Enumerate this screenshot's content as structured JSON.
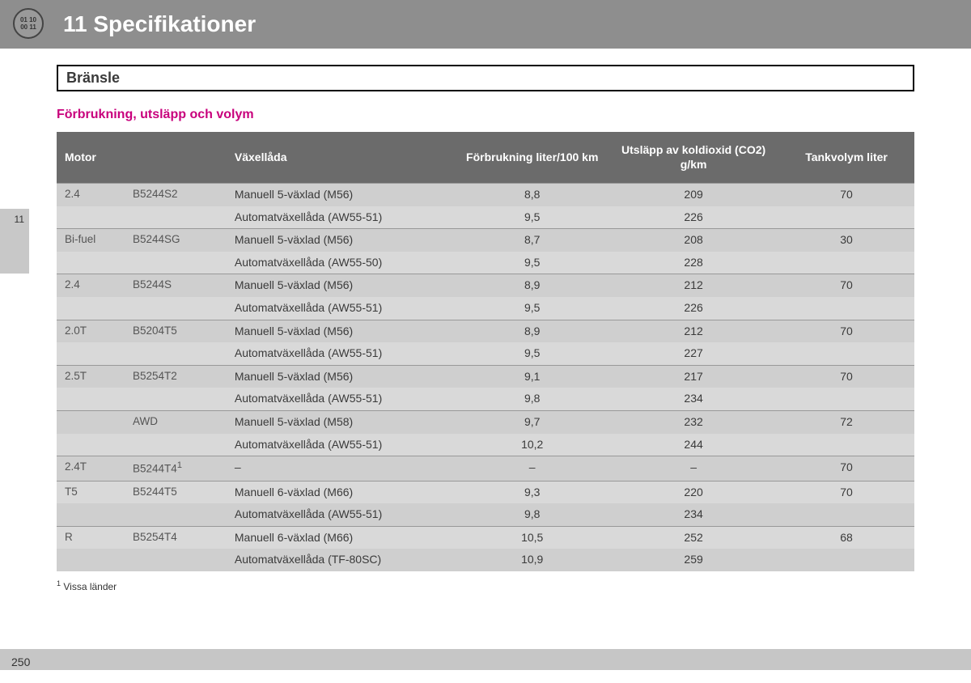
{
  "header": {
    "chapter_title": "11 Specifikationer",
    "icon_lines": [
      "01 10",
      "00 11"
    ]
  },
  "side_tab": "11",
  "section_title": "Bränsle",
  "subtitle": "Förbrukning, utsläpp och volym",
  "columns": {
    "motor": "Motor",
    "gearbox": "Växellåda",
    "consumption": "Förbrukning liter/100 km",
    "co2": "Utsläpp av koldioxid (CO2) g/km",
    "tank": "Tankvolym liter"
  },
  "rows": [
    {
      "shade": "A",
      "section": true,
      "motor": "2.4",
      "engine": "B5244S2",
      "gear": "Manuell 5-växlad (M56)",
      "cons": "8,8",
      "co2": "209",
      "tank": "70"
    },
    {
      "shade": "B",
      "motor": "",
      "engine": "",
      "gear": "Automatväxellåda (AW55-51)",
      "cons": "9,5",
      "co2": "226",
      "tank": ""
    },
    {
      "shade": "A",
      "section": true,
      "motor": "Bi-fuel",
      "engine": "B5244SG",
      "gear": "Manuell 5-växlad (M56)",
      "cons": "8,7",
      "co2": "208",
      "tank": "30"
    },
    {
      "shade": "B",
      "motor": "",
      "engine": "",
      "gear": "Automatväxellåda (AW55-50)",
      "cons": "9,5",
      "co2": "228",
      "tank": ""
    },
    {
      "shade": "A",
      "section": true,
      "motor": "2.4",
      "engine": "B5244S",
      "gear": "Manuell 5-växlad (M56)",
      "cons": "8,9",
      "co2": "212",
      "tank": "70"
    },
    {
      "shade": "B",
      "motor": "",
      "engine": "",
      "gear": "Automatväxellåda (AW55-51)",
      "cons": "9,5",
      "co2": "226",
      "tank": ""
    },
    {
      "shade": "A",
      "section": true,
      "motor": "2.0T",
      "engine": "B5204T5",
      "gear": "Manuell 5-växlad (M56)",
      "cons": "8,9",
      "co2": "212",
      "tank": "70"
    },
    {
      "shade": "B",
      "motor": "",
      "engine": "",
      "gear": "Automatväxellåda (AW55-51)",
      "cons": "9,5",
      "co2": "227",
      "tank": ""
    },
    {
      "shade": "A",
      "section": true,
      "motor": "2.5T",
      "engine": "B5254T2",
      "gear": "Manuell 5-växlad (M56)",
      "cons": "9,1",
      "co2": "217",
      "tank": "70"
    },
    {
      "shade": "B",
      "motor": "",
      "engine": "",
      "gear": "Automatväxellåda (AW55-51)",
      "cons": "9,8",
      "co2": "234",
      "tank": ""
    },
    {
      "shade": "A",
      "section": true,
      "motor": "",
      "engine": "AWD",
      "gear": "Manuell 5-växlad (M58)",
      "cons": "9,7",
      "co2": "232",
      "tank": "72"
    },
    {
      "shade": "B",
      "motor": "",
      "engine": "",
      "gear": "Automatväxellåda (AW55-51)",
      "cons": "10,2",
      "co2": "244",
      "tank": ""
    },
    {
      "shade": "A",
      "section": true,
      "motor": "2.4T",
      "engine": "B5244T4",
      "sup": "1",
      "gear": "–",
      "cons": "–",
      "co2": "–",
      "tank": "70"
    },
    {
      "shade": "B",
      "section": true,
      "motor": "T5",
      "engine": "B5244T5",
      "gear": "Manuell 6-växlad (M66)",
      "cons": "9,3",
      "co2": "220",
      "tank": "70"
    },
    {
      "shade": "A",
      "motor": "",
      "engine": "",
      "gear": "Automatväxellåda (AW55-51)",
      "cons": "9,8",
      "co2": "234",
      "tank": ""
    },
    {
      "shade": "B",
      "section": true,
      "motor": "R",
      "engine": "B5254T4",
      "gear": "Manuell 6-växlad (M66)",
      "cons": "10,5",
      "co2": "252",
      "tank": "68"
    },
    {
      "shade": "A",
      "motor": "",
      "engine": "",
      "gear": "Automatväxellåda (TF-80SC)",
      "cons": "10,9",
      "co2": "259",
      "tank": ""
    }
  ],
  "footnote": {
    "marker": "1",
    "text": "Vissa länder"
  },
  "page_number": "250",
  "colors": {
    "header_bg": "#8e8e8e",
    "thead_bg": "#6b6b6b",
    "rowA": "#cfcfcf",
    "rowB": "#d9d9d9",
    "accent": "#c8007c"
  }
}
